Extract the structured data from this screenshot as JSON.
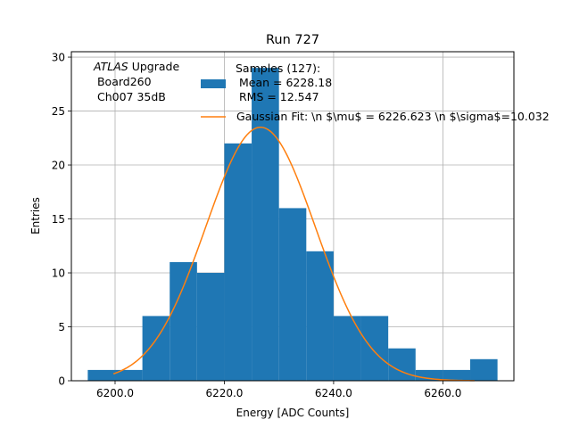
{
  "colors": {
    "bars": "#1f77b4",
    "fit": "#ff7f0e",
    "grid": "#b0b0b0",
    "axis": "#000000"
  },
  "chart_data": {
    "type": "bar",
    "title": "Run 727",
    "xlabel": "Energy [ADC Counts]",
    "ylabel": "Entries",
    "xlim": [
      6192.0,
      6273.0
    ],
    "ylim": [
      0,
      30.5
    ],
    "xticks": [
      6200.0,
      6220.0,
      6240.0,
      6260.0
    ],
    "xtick_labels": [
      "6200.0",
      "6220.0",
      "6240.0",
      "6260.0"
    ],
    "yticks": [
      0,
      5,
      10,
      15,
      20,
      25,
      30
    ],
    "ytick_labels": [
      "0",
      "5",
      "10",
      "15",
      "20",
      "25",
      "30"
    ],
    "grid": true,
    "bins": {
      "edges": [
        6195.0,
        6200.0,
        6205.0,
        6210.0,
        6215.0,
        6220.0,
        6225.0,
        6230.0,
        6235.0,
        6240.0,
        6245.0,
        6250.0,
        6255.0,
        6260.0,
        6265.0,
        6270.0
      ],
      "counts": [
        1,
        1,
        6,
        11,
        10,
        22,
        29,
        16,
        12,
        6,
        6,
        3,
        1,
        1,
        2
      ]
    },
    "fit": {
      "name": "Gaussian Fit",
      "mu": 6226.623,
      "sigma": 10.032,
      "amplitude": 23.5,
      "x_range": [
        6199.7,
        6265.8
      ]
    },
    "legend": {
      "placement": "top-right",
      "entries": [
        {
          "series": "histogram",
          "lines": [
            "Samples (127):",
            " Mean = 6228.18",
            " RMS = 12.547"
          ]
        },
        {
          "series": "fit",
          "lines": [
            "Gaussian Fit: \\n $\\mu$ = 6226.623 \\n $\\sigma$=10.032"
          ]
        }
      ]
    },
    "annotation": {
      "placement": "top-left",
      "italic": "ATLAS",
      "line1_rest": " Upgrade",
      "line2": " Board260",
      "line3": " Ch007 35dB"
    }
  }
}
